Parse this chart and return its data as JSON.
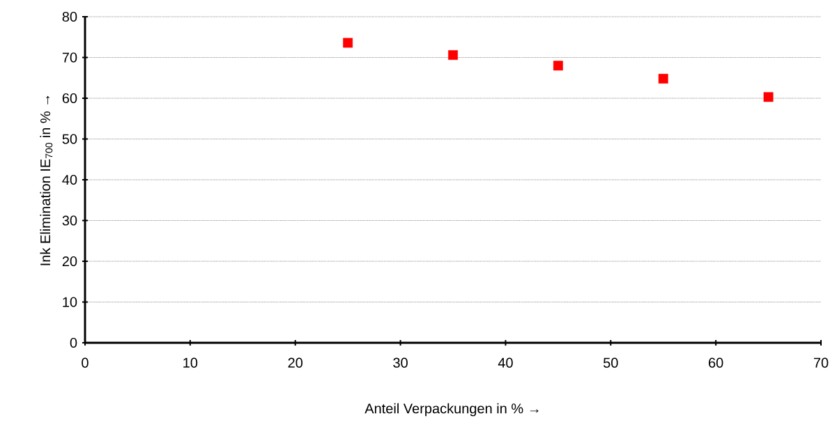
{
  "chart_data": {
    "type": "scatter",
    "xlabel": "Anteil Verpackungen in % →",
    "ylabel": "Ink Elimination IE$_{700}$ in % →",
    "x": [
      25,
      35,
      45,
      55,
      65
    ],
    "series": [
      {
        "color": "#ff0000",
        "values": [
          73.6,
          70.6,
          68.0,
          64.8,
          60.3
        ]
      }
    ],
    "xlim": [
      0,
      70
    ],
    "ylim": [
      0,
      80
    ],
    "xticks": [
      0,
      10,
      20,
      30,
      40,
      50,
      60,
      70
    ],
    "yticks": [
      0,
      10,
      20,
      30,
      40,
      50,
      60,
      70,
      80
    ],
    "grid": "y",
    "marker": "square"
  }
}
